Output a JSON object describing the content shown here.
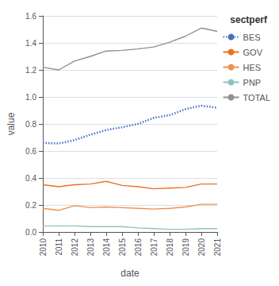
{
  "chart_data": {
    "type": "line",
    "xlabel": "date",
    "ylabel": "value",
    "legend_title": "sectperf",
    "legend": "right",
    "grid": true,
    "x": [
      2010,
      2011,
      2012,
      2013,
      2014,
      2015,
      2016,
      2017,
      2018,
      2019,
      2020,
      2021
    ],
    "xlim": [
      2010,
      2021
    ],
    "xticks": [
      2010,
      2011,
      2012,
      2013,
      2014,
      2015,
      2016,
      2017,
      2018,
      2019,
      2020,
      2021
    ],
    "ylim": [
      0.0,
      1.6
    ],
    "yticks": [
      {
        "value": 0.0,
        "label": "0.0"
      },
      0.2,
      0.4,
      0.6,
      0.8,
      {
        "value": 1.0,
        "label": "1.0"
      },
      1.2,
      1.4,
      1.6
    ],
    "series": [
      {
        "name": "BES",
        "color": "#4472c4",
        "line_style": "dotted",
        "values": [
          0.66,
          0.655,
          0.68,
          0.72,
          0.755,
          0.775,
          0.8,
          0.845,
          0.865,
          0.91,
          0.935,
          0.92
        ]
      },
      {
        "name": "GOV",
        "color": "#f07020",
        "line_style": "solid",
        "values": [
          0.35,
          0.335,
          0.35,
          0.355,
          0.375,
          0.345,
          0.335,
          0.32,
          0.325,
          0.33,
          0.355,
          0.355
        ]
      },
      {
        "name": "HES",
        "color": "#f09050",
        "line_style": "solid",
        "values": [
          0.175,
          0.16,
          0.195,
          0.18,
          0.185,
          0.18,
          0.175,
          0.17,
          0.175,
          0.185,
          0.205,
          0.205
        ]
      },
      {
        "name": "PNP",
        "color": "#90c4be",
        "line_style": "solid",
        "values": [
          0.045,
          0.045,
          0.045,
          0.04,
          0.04,
          0.04,
          0.03,
          0.025,
          0.02,
          0.02,
          0.025,
          0.025
        ]
      },
      {
        "name": "TOTAL",
        "color": "#909090",
        "line_style": "solid",
        "values": [
          1.22,
          1.2,
          1.265,
          1.3,
          1.34,
          1.345,
          1.355,
          1.37,
          1.405,
          1.45,
          1.51,
          1.485
        ]
      }
    ]
  }
}
